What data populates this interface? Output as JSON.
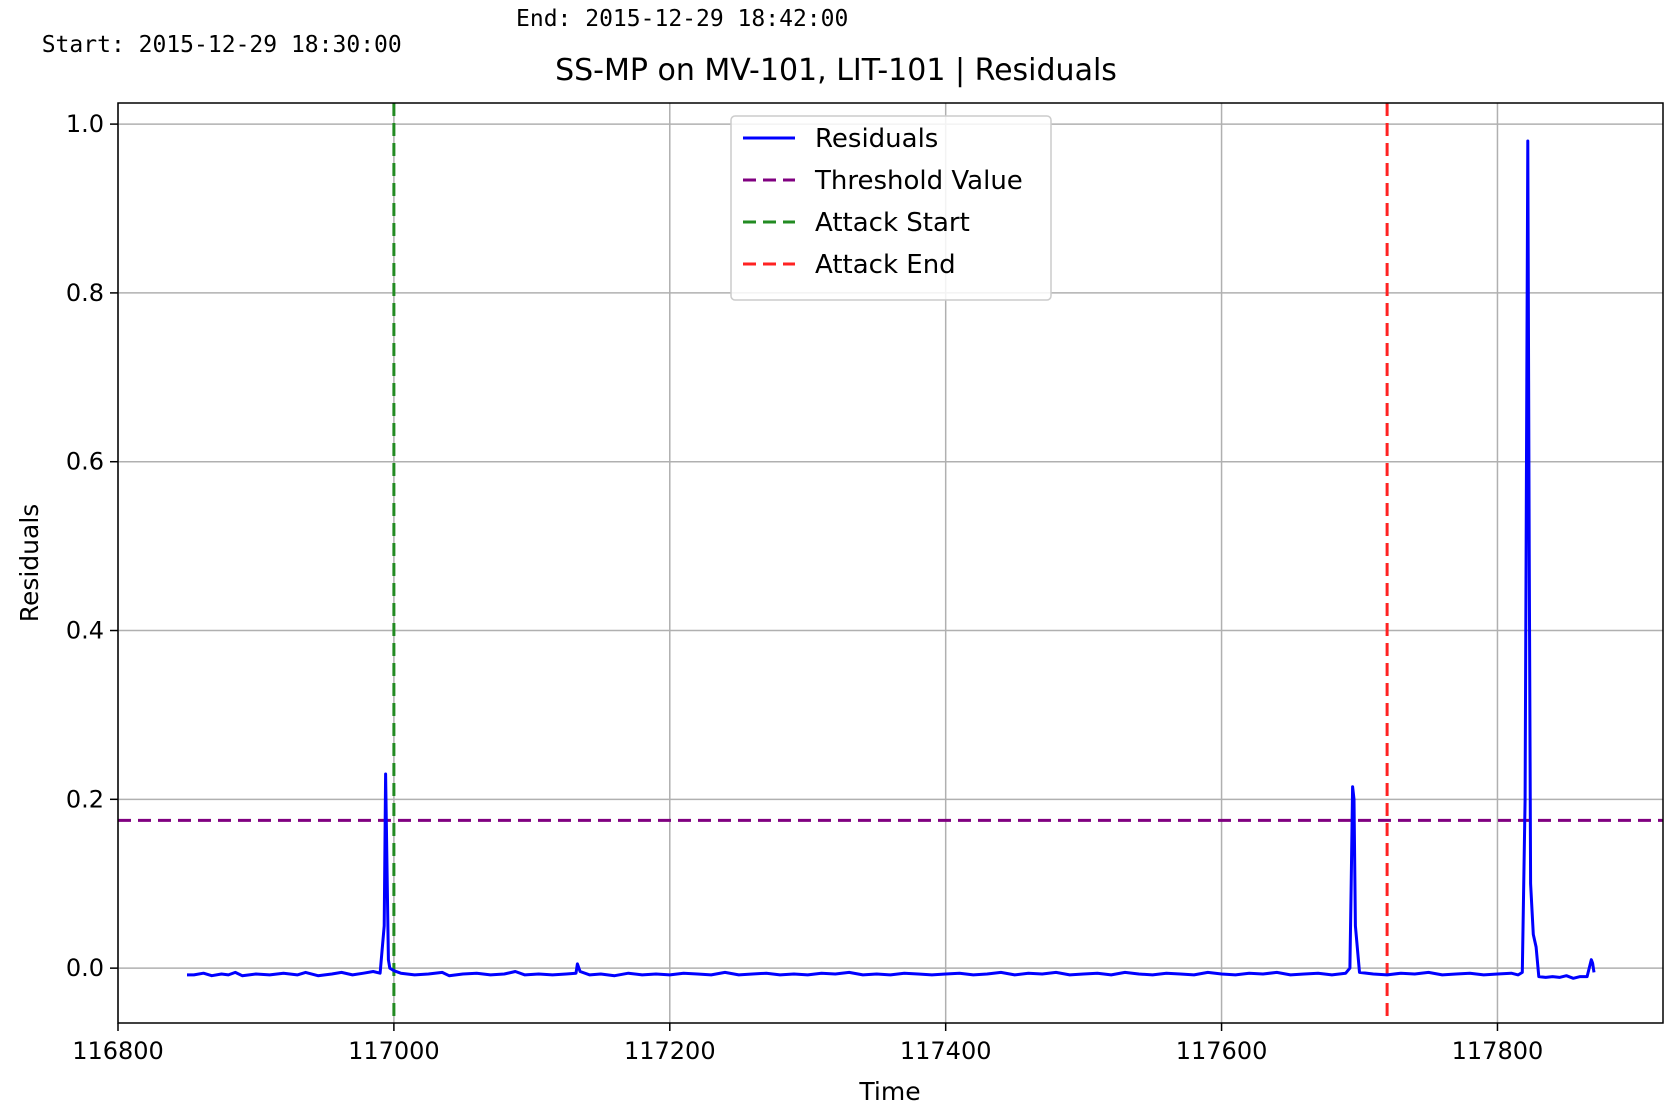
{
  "header": {
    "start_text": "Start: 2015-12-29 18:30:00",
    "end_text": "End: 2015-12-29 18:42:00"
  },
  "chart_data": {
    "type": "line",
    "title": "SS-MP  on  MV-101, LIT-101  |  Residuals",
    "xlabel": "Time",
    "ylabel": "Residuals",
    "xlim": [
      116800,
      117920
    ],
    "ylim": [
      -0.065,
      1.025
    ],
    "xticks": [
      116800,
      117000,
      117200,
      117400,
      117600,
      117800
    ],
    "xtick_labels": [
      "116800",
      "117000",
      "117200",
      "117400",
      "117600",
      "117800"
    ],
    "yticks": [
      0.0,
      0.2,
      0.4,
      0.6,
      0.8,
      1.0
    ],
    "ytick_labels": [
      "0.0",
      "0.2",
      "0.4",
      "0.6",
      "0.8",
      "1.0"
    ],
    "grid": true,
    "legend_position": "upper-center",
    "legend": [
      {
        "label": "Residuals",
        "color": "#0000ff",
        "style": "solid"
      },
      {
        "label": "Threshold Value",
        "color": "#800080",
        "style": "dashed"
      },
      {
        "label": "Attack Start",
        "color": "#228b22",
        "style": "dashed"
      },
      {
        "label": "Attack End",
        "color": "#ff2222",
        "style": "dashed"
      }
    ],
    "series": [
      {
        "name": "Residuals",
        "color": "#0000ff",
        "x": [
          116850,
          116855,
          116862,
          116868,
          116875,
          116880,
          116885,
          116890,
          116900,
          116910,
          116920,
          116930,
          116936,
          116945,
          116955,
          116962,
          116970,
          116978,
          116985,
          116990,
          116993,
          116994,
          116996,
          116997,
          117000,
          117005,
          117015,
          117025,
          117035,
          117040,
          117050,
          117060,
          117070,
          117080,
          117088,
          117095,
          117105,
          117115,
          117125,
          117132,
          117133,
          117135,
          117142,
          117150,
          117160,
          117170,
          117180,
          117190,
          117200,
          117210,
          117220,
          117230,
          117240,
          117250,
          117260,
          117270,
          117280,
          117290,
          117300,
          117310,
          117320,
          117330,
          117340,
          117350,
          117360,
          117370,
          117380,
          117390,
          117400,
          117410,
          117420,
          117430,
          117440,
          117450,
          117460,
          117470,
          117480,
          117490,
          117500,
          117510,
          117520,
          117530,
          117540,
          117550,
          117560,
          117570,
          117580,
          117590,
          117600,
          117610,
          117620,
          117630,
          117640,
          117650,
          117660,
          117670,
          117680,
          117690,
          117693,
          117694,
          117695,
          117696,
          117697,
          117700,
          117710,
          117720,
          117730,
          117740,
          117750,
          117760,
          117770,
          117780,
          117790,
          117800,
          117810,
          117815,
          117818,
          117820,
          117822,
          117823,
          117824,
          117826,
          117828,
          117830,
          117835,
          117840,
          117845,
          117850,
          117855,
          117860,
          117865,
          117868,
          117869,
          117870
        ],
        "values": [
          -0.008,
          -0.008,
          -0.006,
          -0.009,
          -0.007,
          -0.008,
          -0.005,
          -0.009,
          -0.007,
          -0.008,
          -0.006,
          -0.008,
          -0.005,
          -0.009,
          -0.007,
          -0.005,
          -0.008,
          -0.006,
          -0.004,
          -0.006,
          0.05,
          0.23,
          0.01,
          0.0,
          -0.003,
          -0.006,
          -0.008,
          -0.007,
          -0.005,
          -0.009,
          -0.007,
          -0.006,
          -0.008,
          -0.007,
          -0.004,
          -0.008,
          -0.007,
          -0.008,
          -0.007,
          -0.006,
          0.005,
          -0.004,
          -0.008,
          -0.007,
          -0.009,
          -0.006,
          -0.008,
          -0.007,
          -0.008,
          -0.006,
          -0.007,
          -0.008,
          -0.005,
          -0.008,
          -0.007,
          -0.006,
          -0.008,
          -0.007,
          -0.008,
          -0.006,
          -0.007,
          -0.005,
          -0.008,
          -0.007,
          -0.008,
          -0.006,
          -0.007,
          -0.008,
          -0.007,
          -0.006,
          -0.008,
          -0.007,
          -0.005,
          -0.008,
          -0.006,
          -0.007,
          -0.005,
          -0.008,
          -0.007,
          -0.006,
          -0.008,
          -0.005,
          -0.007,
          -0.008,
          -0.006,
          -0.007,
          -0.008,
          -0.005,
          -0.007,
          -0.008,
          -0.006,
          -0.007,
          -0.005,
          -0.008,
          -0.007,
          -0.006,
          -0.008,
          -0.006,
          0.0,
          0.1,
          0.215,
          0.2,
          0.05,
          -0.005,
          -0.007,
          -0.008,
          -0.006,
          -0.007,
          -0.005,
          -0.008,
          -0.007,
          -0.006,
          -0.008,
          -0.007,
          -0.006,
          -0.008,
          -0.005,
          0.2,
          0.98,
          0.5,
          0.1,
          0.04,
          0.025,
          -0.01,
          -0.011,
          -0.01,
          -0.011,
          -0.009,
          -0.012,
          -0.01,
          -0.01,
          0.01,
          0.006,
          -0.005
        ]
      }
    ],
    "threshold": {
      "name": "Threshold Value",
      "y": 0.175,
      "color": "#800080"
    },
    "attack_start": {
      "name": "Attack Start",
      "x": 117000,
      "color": "#228b22"
    },
    "attack_end": {
      "name": "Attack End",
      "x": 117720,
      "color": "#ff2222"
    }
  }
}
